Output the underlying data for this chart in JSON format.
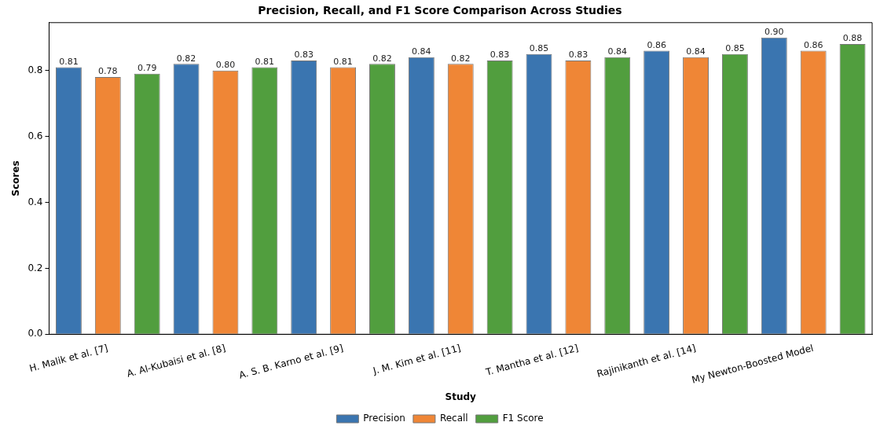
{
  "chart_data": {
    "type": "bar",
    "title": "Precision, Recall, and F1 Score Comparison Across Studies",
    "xlabel": "Study",
    "ylabel": "Scores",
    "categories": [
      "H. Malik et al. [7]",
      "A. Al-Kubaisi et al. [8]",
      "A. S. B. Karno et al. [9]",
      "J. M. Kim et al. [11]",
      "T. Mantha et al. [12]",
      "Rajinikanth et al. [14]",
      "My Newton-Boosted Model"
    ],
    "series": [
      {
        "name": "Precision",
        "color": "#3a75b0",
        "values": [
          0.81,
          0.82,
          0.83,
          0.84,
          0.85,
          0.86,
          0.9
        ],
        "value_labels": [
          "0.81",
          "0.82",
          "0.83",
          "0.84",
          "0.85",
          "0.86",
          "0.90"
        ]
      },
      {
        "name": "Recall",
        "color": "#ef8636",
        "values": [
          0.78,
          0.8,
          0.81,
          0.82,
          0.83,
          0.84,
          0.86
        ],
        "value_labels": [
          "0.78",
          "0.80",
          "0.81",
          "0.82",
          "0.83",
          "0.84",
          "0.86"
        ]
      },
      {
        "name": "F1 Score",
        "color": "#519e3e",
        "values": [
          0.79,
          0.81,
          0.82,
          0.83,
          0.84,
          0.85,
          0.88
        ],
        "value_labels": [
          "0.79",
          "0.81",
          "0.82",
          "0.83",
          "0.84",
          "0.85",
          "0.88"
        ]
      }
    ],
    "ylim": [
      0,
      0.945
    ],
    "yticks": [
      {
        "value": 0,
        "label": "0.0"
      },
      {
        "value": 0.2,
        "label": "0.2"
      },
      {
        "value": 0.4,
        "label": "0.4"
      },
      {
        "value": 0.6,
        "label": "0.6"
      },
      {
        "value": 0.8,
        "label": "0.8"
      }
    ],
    "grid": false,
    "legend": "bottom"
  }
}
